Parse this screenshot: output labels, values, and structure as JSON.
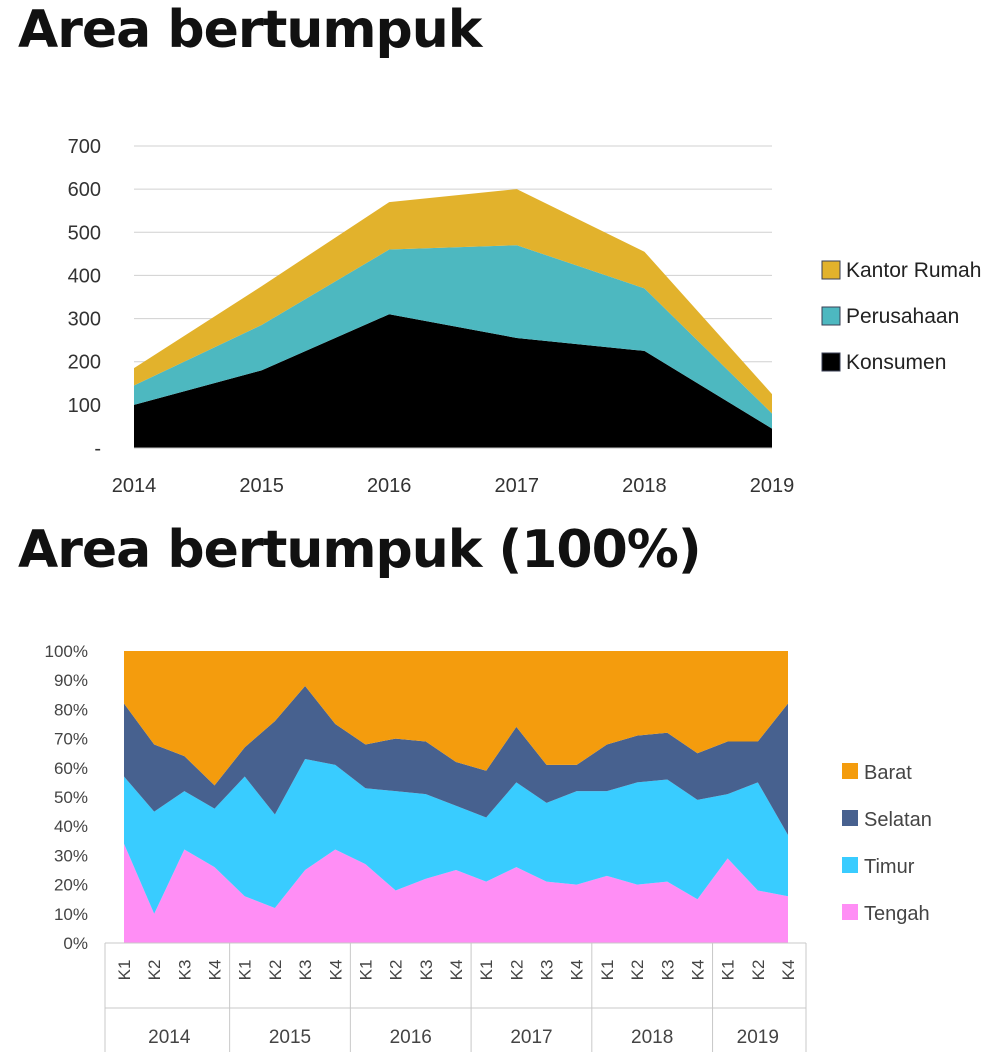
{
  "charts": [
    {
      "title": "Area bertumpuk",
      "chart_data": {
        "type": "area",
        "stacked": true,
        "categories": [
          "2014",
          "2015",
          "2016",
          "2017",
          "2018",
          "2019"
        ],
        "series": [
          {
            "name": "Konsumen",
            "values": [
              100,
              180,
              310,
              255,
              225,
              45
            ],
            "color": "#000000"
          },
          {
            "name": "Perusahaan",
            "values": [
              45,
              105,
              150,
              215,
              145,
              35
            ],
            "color": "#4db8c0"
          },
          {
            "name": "Kantor Rumah",
            "values": [
              40,
              90,
              110,
              130,
              85,
              45
            ],
            "color": "#e2b22c"
          }
        ],
        "y_ticks": [
          "-",
          "100",
          "200",
          "300",
          "400",
          "500",
          "600",
          "700"
        ],
        "ylim": [
          0,
          700
        ],
        "grid": true,
        "legend": "right",
        "legend_order": [
          "Kantor Rumah",
          "Perusahaan",
          "Konsumen"
        ]
      }
    },
    {
      "title": "Area bertumpuk (100%)",
      "chart_data": {
        "type": "area",
        "stacked": "percent",
        "categories": [
          "K1",
          "K2",
          "K3",
          "K4",
          "K1",
          "K2",
          "K3",
          "K4",
          "K1",
          "K2",
          "K3",
          "K4",
          "K1",
          "K2",
          "K3",
          "K4",
          "K1",
          "K2",
          "K3",
          "K4",
          "K1",
          "K2",
          "K4"
        ],
        "groups": [
          {
            "label": "2014",
            "count": 4
          },
          {
            "label": "2015",
            "count": 4
          },
          {
            "label": "2016",
            "count": 4
          },
          {
            "label": "2017",
            "count": 4
          },
          {
            "label": "2018",
            "count": 4
          },
          {
            "label": "2019",
            "count": 3
          }
        ],
        "series": [
          {
            "name": "Tengah",
            "values": [
              34,
              10,
              32,
              26,
              16,
              12,
              25,
              32,
              27,
              18,
              22,
              25,
              21,
              26,
              21,
              20,
              23,
              20,
              21,
              15,
              29,
              18,
              16
            ],
            "color": "#ff8ef5"
          },
          {
            "name": "Timur",
            "values": [
              23,
              35,
              20,
              20,
              41,
              32,
              38,
              29,
              26,
              34,
              29,
              22,
              22,
              29,
              27,
              32,
              29,
              35,
              35,
              34,
              22,
              37,
              21
            ],
            "color": "#39ccff"
          },
          {
            "name": "Selatan",
            "values": [
              25,
              23,
              12,
              8,
              10,
              32,
              25,
              14,
              15,
              18,
              18,
              15,
              16,
              19,
              13,
              9,
              16,
              16,
              16,
              16,
              18,
              14,
              45
            ],
            "color": "#47618f"
          },
          {
            "name": "Barat",
            "values": [
              18,
              32,
              36,
              46,
              33,
              24,
              12,
              25,
              32,
              30,
              31,
              38,
              41,
              26,
              39,
              39,
              32,
              29,
              28,
              35,
              31,
              31,
              18
            ],
            "color": "#f49c0d"
          }
        ],
        "y_ticks": [
          "0%",
          "10%",
          "20%",
          "30%",
          "40%",
          "50%",
          "60%",
          "70%",
          "80%",
          "90%",
          "100%"
        ],
        "ylim": [
          0,
          100
        ],
        "grid": false,
        "legend": "right",
        "legend_order": [
          "Barat",
          "Selatan",
          "Timur",
          "Tengah"
        ]
      }
    }
  ]
}
